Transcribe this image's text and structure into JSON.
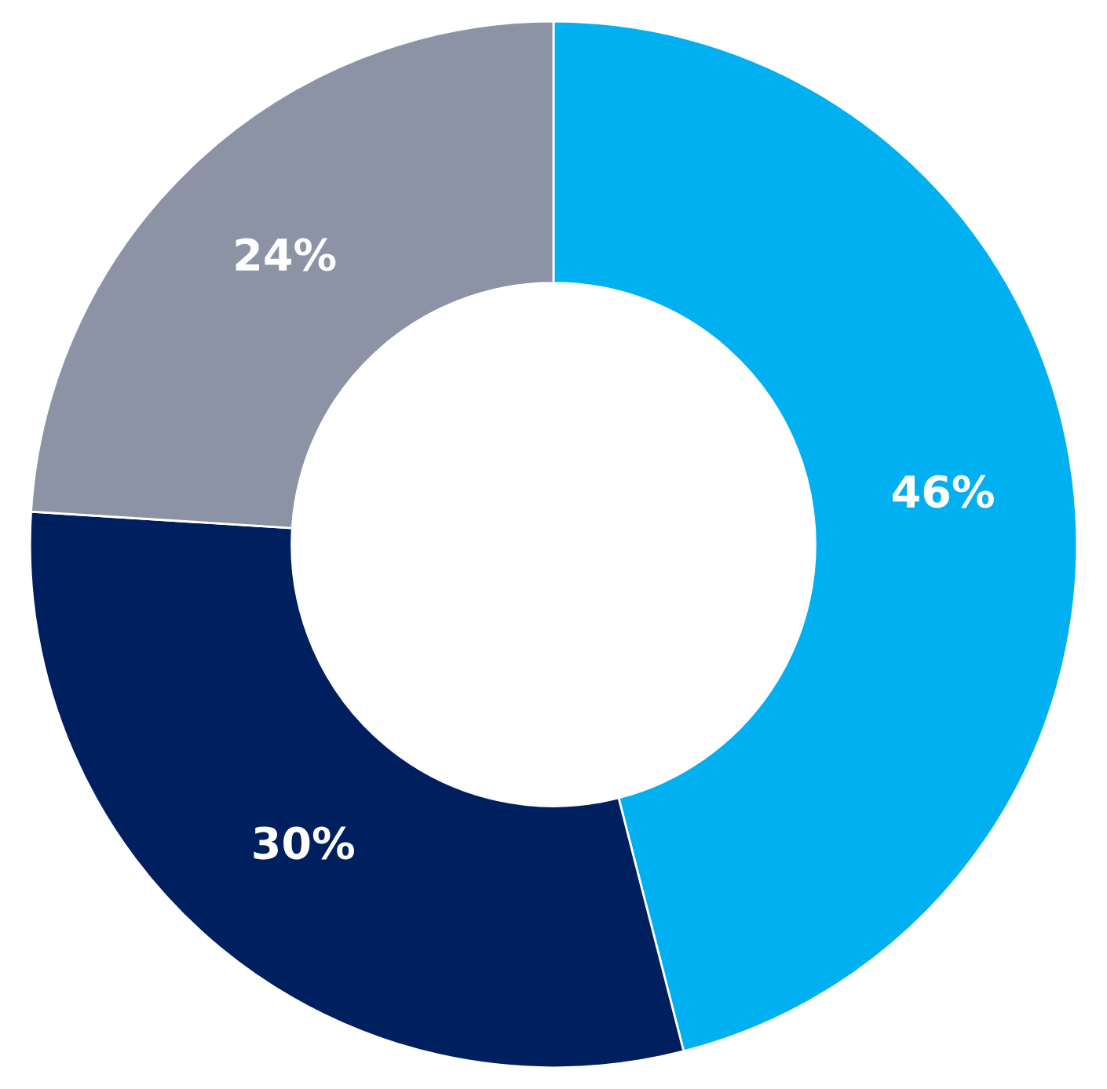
{
  "chart_data": {
    "type": "donut",
    "categories": [
      null,
      null,
      null
    ],
    "values": [
      46,
      30,
      24
    ],
    "colors": [
      "#00b0f0",
      "#001f5f",
      "#8b93a5"
    ],
    "value_labels": [
      "46%",
      "30%",
      "24%"
    ]
  }
}
